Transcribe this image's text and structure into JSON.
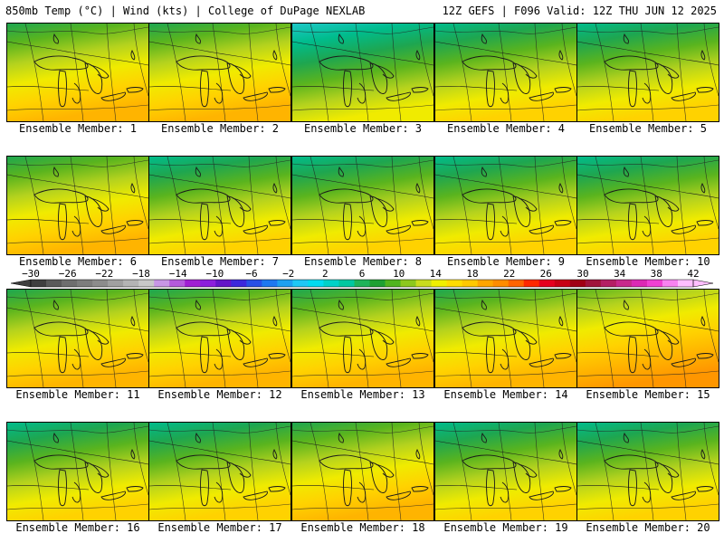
{
  "header": {
    "left": "850mb Temp (°C) | Wind (kts) | College of DuPage NEXLAB",
    "right": "12Z GEFS | F096 Valid: 12Z THU JUN 12 2025"
  },
  "panels": [
    {
      "label": "Ensemble Member: 1",
      "warmth": 0.62
    },
    {
      "label": "Ensemble Member: 2",
      "warmth": 0.7
    },
    {
      "label": "Ensemble Member: 3",
      "warmth": 0.38
    },
    {
      "label": "Ensemble Member: 4",
      "warmth": 0.58
    },
    {
      "label": "Ensemble Member: 5",
      "warmth": 0.5
    },
    {
      "label": "Ensemble Member: 6",
      "warmth": 0.6
    },
    {
      "label": "Ensemble Member: 7",
      "warmth": 0.52
    },
    {
      "label": "Ensemble Member: 8",
      "warmth": 0.5
    },
    {
      "label": "Ensemble Member: 9",
      "warmth": 0.48
    },
    {
      "label": "Ensemble Member: 10",
      "warmth": 0.56
    },
    {
      "label": "Ensemble Member: 11",
      "warmth": 0.64
    },
    {
      "label": "Ensemble Member: 12",
      "warmth": 0.6
    },
    {
      "label": "Ensemble Member: 13",
      "warmth": 0.66
    },
    {
      "label": "Ensemble Member: 14",
      "warmth": 0.64
    },
    {
      "label": "Ensemble Member: 15",
      "warmth": 0.8
    },
    {
      "label": "Ensemble Member: 16",
      "warmth": 0.58
    },
    {
      "label": "Ensemble Member: 17",
      "warmth": 0.48
    },
    {
      "label": "Ensemble Member: 18",
      "warmth": 0.64
    },
    {
      "label": "Ensemble Member: 19",
      "warmth": 0.56
    },
    {
      "label": "Ensemble Member: 20",
      "warmth": 0.46
    }
  ],
  "colorbar": {
    "ticks": [
      "-30",
      "-26",
      "-22",
      "-18",
      "-14",
      "-10",
      "-6",
      "-2",
      "2",
      "6",
      "10",
      "14",
      "18",
      "22",
      "26",
      "30",
      "34",
      "38",
      "42"
    ],
    "colors": [
      "#3f3f3f",
      "#5a5a5a",
      "#6e6e6e",
      "#7d7d7d",
      "#8c8c8c",
      "#a0a0a0",
      "#b4b4b4",
      "#c8c8c8",
      "#c896e6",
      "#b45adc",
      "#a01ed2",
      "#8c1edc",
      "#6414c8",
      "#3c28dc",
      "#2850e6",
      "#1e78f0",
      "#1ea0f0",
      "#1ec8f5",
      "#00dcf0",
      "#00d2c8",
      "#00c8a0",
      "#1eb45a",
      "#1ea032",
      "#50b41e",
      "#8cc81e",
      "#c8dc1e",
      "#f0f000",
      "#ffdc00",
      "#ffc800",
      "#ffa500",
      "#ff8c00",
      "#ff6400",
      "#ff2800",
      "#e6001e",
      "#c80014",
      "#a00014",
      "#a0143c",
      "#b41e64",
      "#c8288c",
      "#dc28b4",
      "#f040d2",
      "#f882f0",
      "#ffbeff"
    ]
  }
}
